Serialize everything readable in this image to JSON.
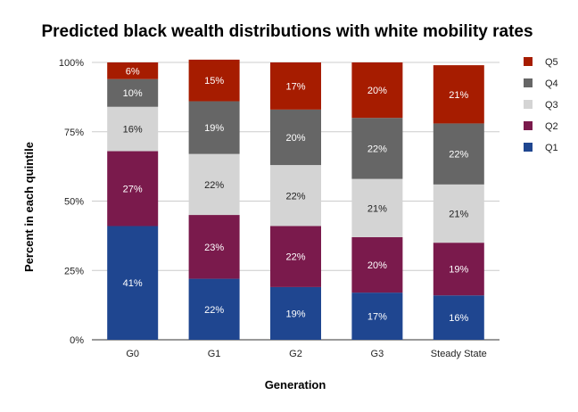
{
  "chart_data": {
    "type": "bar",
    "stacked": true,
    "title": "Predicted black wealth distributions with white mobility rates",
    "xlabel": "Generation",
    "ylabel": "Percent in each quintile",
    "ylim": [
      0,
      100
    ],
    "yticks": [
      0,
      25,
      50,
      75,
      100
    ],
    "ytick_labels": [
      "0%",
      "25%",
      "50%",
      "75%",
      "100%"
    ],
    "grid": true,
    "legend_position": "right",
    "categories": [
      "G0",
      "G1",
      "G2",
      "G3",
      "Steady State"
    ],
    "series": [
      {
        "name": "Q1",
        "color": "#1f4690",
        "label_color": "#ffffff",
        "values": [
          41,
          22,
          19,
          17,
          16
        ]
      },
      {
        "name": "Q2",
        "color": "#7a1a4c",
        "label_color": "#ffffff",
        "values": [
          27,
          23,
          22,
          20,
          19
        ]
      },
      {
        "name": "Q3",
        "color": "#d4d4d4",
        "label_color": "#222222",
        "values": [
          16,
          22,
          22,
          21,
          21
        ]
      },
      {
        "name": "Q4",
        "color": "#666666",
        "label_color": "#ffffff",
        "values": [
          10,
          19,
          20,
          22,
          22
        ]
      },
      {
        "name": "Q5",
        "color": "#a61c00",
        "label_color": "#ffffff",
        "values": [
          6,
          15,
          17,
          20,
          21
        ]
      }
    ],
    "data_label_suffix": "%",
    "legend_order": [
      "Q5",
      "Q4",
      "Q3",
      "Q2",
      "Q1"
    ]
  }
}
